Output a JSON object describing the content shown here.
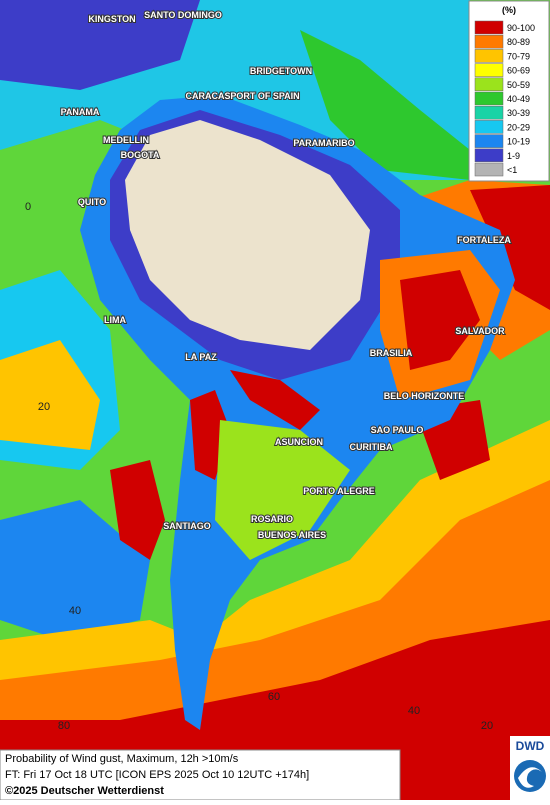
{
  "map": {
    "cities": [
      "KINGSTON",
      "SANTO DOMINGO",
      "BRIDGETOWN",
      "CARACAS",
      "PORT OF SPAIN",
      "PANAMA",
      "MEDELLIN",
      "BOGOTA",
      "PARAMARIBO",
      "QUITO",
      "FORTALEZA",
      "LIMA",
      "SALVADOR",
      "BRASILIA",
      "LA PAZ",
      "BELO HORIZONTE",
      "SAO PAULO",
      "ASUNCION",
      "CURITIBA",
      "PORTO ALEGRE",
      "ROSARIO",
      "SANTIAGO",
      "BUENOS AIRES"
    ],
    "grid_labels": [
      "0",
      "20",
      "40",
      "80",
      "60",
      "40",
      "20"
    ],
    "legend": {
      "unit": "(%)",
      "items": [
        {
          "label": "90-100",
          "color": "#d00000"
        },
        {
          "label": "80-89",
          "color": "#ff7a00"
        },
        {
          "label": "70-79",
          "color": "#ffc400"
        },
        {
          "label": "60-69",
          "color": "#ffff00"
        },
        {
          "label": "50-59",
          "color": "#9be31c"
        },
        {
          "label": "40-49",
          "color": "#2ec82e"
        },
        {
          "label": "30-39",
          "color": "#1ad3a6"
        },
        {
          "label": "20-29",
          "color": "#17c8f0"
        },
        {
          "label": "10-19",
          "color": "#1c86f0"
        },
        {
          "label": "1-9",
          "color": "#3d3dc8"
        },
        {
          "label": "<1",
          "color": "#b4b4b4"
        }
      ]
    },
    "footer": {
      "line1": "Probability of Wind gust, Maximum, 12h >10m/s",
      "line2": "FT: Fri 17 Oct 18 UTC [ICON EPS 2025 Oct 10 12UTC +174h]",
      "copyright": "©2025 Deutscher Wetterdienst"
    },
    "logo": "DWD"
  }
}
